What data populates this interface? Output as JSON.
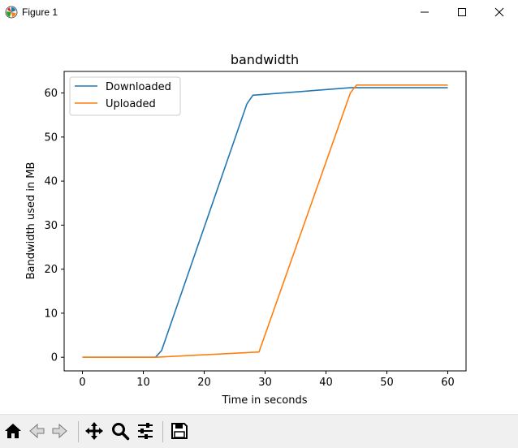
{
  "window": {
    "title": "Figure 1",
    "icons": [
      "matplotlib-icon",
      "minimize-icon",
      "maximize-icon",
      "close-icon"
    ]
  },
  "toolbar": {
    "buttons": [
      "home-icon",
      "back-icon",
      "forward-icon",
      "pan-icon",
      "zoom-icon",
      "configure-subplots-icon",
      "save-icon"
    ]
  },
  "colors": {
    "downloaded": "#1f77b4",
    "uploaded": "#ff7f0e"
  },
  "chart_data": {
    "type": "line",
    "title": "bandwidth",
    "xlabel": "Time in seconds",
    "ylabel": "Bandwidth used in MB",
    "xlim": [
      -3,
      63
    ],
    "ylim": [
      -3.1,
      64.9
    ],
    "xticks": [
      0,
      10,
      20,
      30,
      40,
      50,
      60
    ],
    "yticks": [
      0,
      10,
      20,
      30,
      40,
      50,
      60
    ],
    "grid": false,
    "legend": "top-left",
    "series": [
      {
        "name": "Downloaded",
        "color": "#1f77b4",
        "x": [
          0,
          12,
          13,
          27,
          28,
          44,
          60
        ],
        "y": [
          0,
          0,
          1.5,
          57.5,
          59.5,
          61.2,
          61.2
        ]
      },
      {
        "name": "Uploaded",
        "color": "#ff7f0e",
        "x": [
          0,
          12,
          29,
          44,
          45,
          60
        ],
        "y": [
          0,
          0,
          1.2,
          60,
          61.8,
          61.8
        ]
      }
    ]
  }
}
